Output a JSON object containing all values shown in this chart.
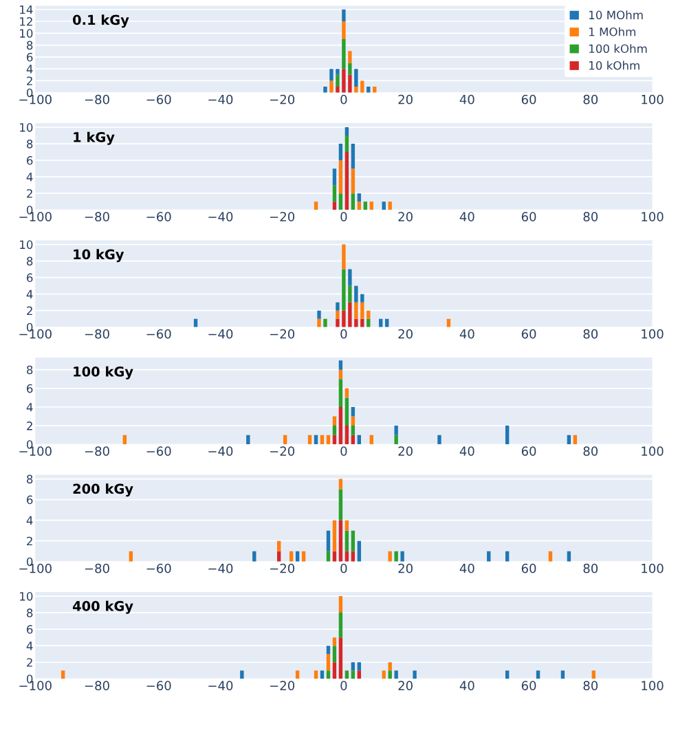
{
  "chart_data": [
    {
      "type": "bar",
      "stacked": true,
      "annotations": [
        "0.1 kGy"
      ],
      "legend": "top right",
      "grid": "y",
      "xlim": [
        -100,
        100
      ],
      "ylim": [
        0,
        14.6
      ],
      "yticks": [
        0,
        2,
        4,
        6,
        8,
        10,
        12,
        14
      ],
      "xticks": [
        {
          "value": -100,
          "label": "−100"
        },
        {
          "value": -80,
          "label": "−80"
        },
        {
          "value": -60,
          "label": "−60"
        },
        {
          "value": -40,
          "label": "−40"
        },
        {
          "value": -20,
          "label": "−20"
        },
        0,
        20,
        40,
        60,
        80,
        100
      ],
      "x": [
        -6,
        -4,
        -2,
        0,
        2,
        4,
        6,
        8,
        10
      ],
      "series": [
        {
          "name": "10 kOhm",
          "color": "#d62728",
          "values": [
            0,
            0,
            1,
            4,
            3,
            0,
            0,
            0,
            0
          ]
        },
        {
          "name": "100 kOhm",
          "color": "#2ca02c",
          "values": [
            0,
            0,
            2,
            5,
            2,
            0,
            0,
            0,
            0
          ]
        },
        {
          "name": "1 MOhm",
          "color": "#ff7f0e",
          "values": [
            0,
            2,
            0,
            3,
            2,
            1,
            2,
            0,
            1
          ]
        },
        {
          "name": "10 MOhm",
          "color": "#1f77b4",
          "values": [
            1,
            2,
            1,
            2,
            0,
            3,
            0,
            1,
            0
          ]
        }
      ]
    },
    {
      "type": "bar",
      "stacked": true,
      "annotations": [
        "1 kGy"
      ],
      "grid": "y",
      "xlim": [
        -100,
        100
      ],
      "ylim": [
        0,
        10.5
      ],
      "yticks": [
        0,
        2,
        4,
        6,
        8,
        10
      ],
      "xticks": [
        {
          "value": -100,
          "label": "−100"
        },
        {
          "value": -80,
          "label": "−80"
        },
        {
          "value": -60,
          "label": "−60"
        },
        {
          "value": -40,
          "label": "−40"
        },
        {
          "value": -20,
          "label": "−20"
        },
        0,
        20,
        40,
        60,
        80,
        100
      ],
      "x": [
        -9,
        -3,
        -1,
        1,
        3,
        5,
        7,
        9,
        13,
        15
      ],
      "series": [
        {
          "color": "#d62728",
          "values": [
            0,
            1,
            0,
            7,
            0,
            0,
            0,
            0,
            0,
            0
          ]
        },
        {
          "color": "#2ca02c",
          "values": [
            0,
            2,
            2,
            2,
            2,
            0,
            1,
            0,
            0,
            0
          ]
        },
        {
          "color": "#ff7f0e",
          "values": [
            1,
            0,
            4,
            0,
            3,
            1,
            0,
            1,
            0,
            1
          ]
        },
        {
          "color": "#1f77b4",
          "values": [
            0,
            2,
            2,
            1,
            3,
            1,
            0,
            0,
            1,
            0
          ]
        }
      ]
    },
    {
      "type": "bar",
      "stacked": true,
      "annotations": [
        "10 kGy"
      ],
      "grid": "y",
      "xlim": [
        -100,
        100
      ],
      "ylim": [
        0,
        10.5
      ],
      "yticks": [
        0,
        2,
        4,
        6,
        8,
        10
      ],
      "xticks": [
        {
          "value": -100,
          "label": "−100"
        },
        {
          "value": -80,
          "label": "−80"
        },
        {
          "value": -60,
          "label": "−60"
        },
        {
          "value": -40,
          "label": "−40"
        },
        {
          "value": -20,
          "label": "−20"
        },
        0,
        20,
        40,
        60,
        80,
        100
      ],
      "x": [
        -48,
        -8,
        -6,
        -2,
        0,
        2,
        4,
        6,
        8,
        12,
        14,
        34
      ],
      "series": [
        {
          "color": "#d62728",
          "values": [
            0,
            0,
            0,
            1,
            2,
            3,
            1,
            1,
            0,
            0,
            0,
            0
          ]
        },
        {
          "color": "#2ca02c",
          "values": [
            0,
            0,
            1,
            0,
            5,
            2,
            0,
            0,
            1,
            0,
            0,
            0
          ]
        },
        {
          "color": "#ff7f0e",
          "values": [
            0,
            1,
            0,
            1,
            3,
            0,
            2,
            2,
            1,
            0,
            0,
            1
          ]
        },
        {
          "color": "#1f77b4",
          "values": [
            1,
            1,
            0,
            1,
            0,
            2,
            2,
            1,
            0,
            1,
            1,
            0
          ]
        }
      ]
    },
    {
      "type": "bar",
      "stacked": true,
      "annotations": [
        "100 kGy"
      ],
      "grid": "y",
      "xlim": [
        -100,
        100
      ],
      "ylim": [
        0,
        9.3
      ],
      "yticks": [
        0,
        2,
        4,
        6,
        8
      ],
      "xticks": [
        {
          "value": -100,
          "label": "−100"
        },
        {
          "value": -80,
          "label": "−80"
        },
        {
          "value": -60,
          "label": "−60"
        },
        {
          "value": -40,
          "label": "−40"
        },
        {
          "value": -20,
          "label": "−20"
        },
        0,
        20,
        40,
        60,
        80,
        100
      ],
      "x": [
        -71,
        -31,
        -19,
        -11,
        -9,
        -7,
        -5,
        -3,
        -1,
        1,
        3,
        5,
        9,
        17,
        31,
        53,
        73,
        75
      ],
      "series": [
        {
          "color": "#d62728",
          "values": [
            0,
            0,
            0,
            0,
            0,
            0,
            0,
            1,
            4,
            2,
            1,
            0,
            0,
            0,
            0,
            0,
            0,
            0
          ]
        },
        {
          "color": "#2ca02c",
          "values": [
            0,
            0,
            0,
            0,
            0,
            0,
            0,
            1,
            3,
            3,
            1,
            0,
            0,
            1,
            0,
            0,
            0,
            0
          ]
        },
        {
          "color": "#ff7f0e",
          "values": [
            1,
            0,
            1,
            1,
            0,
            1,
            1,
            1,
            1,
            1,
            1,
            0,
            1,
            0,
            0,
            0,
            0,
            1
          ]
        },
        {
          "color": "#1f77b4",
          "values": [
            0,
            1,
            0,
            0,
            1,
            0,
            0,
            0,
            1,
            0,
            1,
            1,
            0,
            1,
            1,
            2,
            1,
            0
          ]
        }
      ]
    },
    {
      "type": "bar",
      "stacked": true,
      "annotations": [
        "200 kGy"
      ],
      "grid": "y",
      "xlim": [
        -100,
        100
      ],
      "ylim": [
        0,
        8.4
      ],
      "yticks": [
        0,
        2,
        4,
        6,
        8
      ],
      "xticks": [
        {
          "value": -100,
          "label": "−100"
        },
        {
          "value": -80,
          "label": "−80"
        },
        {
          "value": -60,
          "label": "−60"
        },
        {
          "value": -40,
          "label": "−40"
        },
        {
          "value": -20,
          "label": "−20"
        },
        0,
        20,
        40,
        60,
        80,
        100
      ],
      "x": [
        -69,
        -29,
        -21,
        -17,
        -15,
        -13,
        -5,
        -3,
        -1,
        1,
        3,
        5,
        15,
        17,
        19,
        47,
        53,
        67,
        73
      ],
      "series": [
        {
          "color": "#d62728",
          "values": [
            0,
            0,
            1,
            0,
            0,
            0,
            0,
            1,
            4,
            1,
            1,
            0,
            0,
            0,
            0,
            0,
            0,
            0,
            0
          ]
        },
        {
          "color": "#2ca02c",
          "values": [
            0,
            0,
            0,
            0,
            0,
            0,
            1,
            0,
            3,
            2,
            2,
            0,
            0,
            1,
            0,
            0,
            0,
            0,
            0
          ]
        },
        {
          "color": "#ff7f0e",
          "values": [
            1,
            0,
            1,
            1,
            0,
            1,
            0,
            3,
            1,
            1,
            0,
            0,
            1,
            0,
            0,
            0,
            0,
            1,
            0
          ]
        },
        {
          "color": "#1f77b4",
          "values": [
            0,
            1,
            0,
            0,
            1,
            0,
            2,
            0,
            0,
            0,
            0,
            2,
            0,
            0,
            1,
            1,
            1,
            0,
            1
          ]
        }
      ]
    },
    {
      "type": "bar",
      "stacked": true,
      "annotations": [
        "400 kGy"
      ],
      "grid": "y",
      "xlim": [
        -100,
        100
      ],
      "ylim": [
        0,
        10.5
      ],
      "yticks": [
        0,
        2,
        4,
        6,
        8,
        10
      ],
      "xticks": [
        {
          "value": -100,
          "label": "−100"
        },
        {
          "value": -80,
          "label": "−80"
        },
        {
          "value": -60,
          "label": "−60"
        },
        {
          "value": -40,
          "label": "−40"
        },
        {
          "value": -20,
          "label": "−20"
        },
        0,
        20,
        40,
        60,
        80,
        100
      ],
      "x": [
        -91,
        -33,
        -15,
        -9,
        -7,
        -5,
        -3,
        -1,
        1,
        3,
        5,
        13,
        15,
        17,
        23,
        53,
        63,
        71,
        81
      ],
      "series": [
        {
          "color": "#d62728",
          "values": [
            0,
            0,
            0,
            0,
            0,
            0,
            2,
            5,
            0,
            0,
            1,
            0,
            0,
            0,
            0,
            0,
            0,
            0,
            0
          ]
        },
        {
          "color": "#2ca02c",
          "values": [
            0,
            0,
            0,
            0,
            0,
            1,
            2,
            3,
            1,
            1,
            0,
            0,
            1,
            0,
            0,
            0,
            0,
            0,
            0
          ]
        },
        {
          "color": "#ff7f0e",
          "values": [
            1,
            0,
            1,
            1,
            0,
            2,
            1,
            2,
            0,
            0,
            0,
            1,
            1,
            0,
            0,
            0,
            0,
            0,
            1
          ]
        },
        {
          "color": "#1f77b4",
          "values": [
            0,
            1,
            0,
            0,
            1,
            1,
            0,
            0,
            0,
            1,
            1,
            0,
            0,
            1,
            1,
            1,
            1,
            1,
            0
          ]
        }
      ]
    }
  ]
}
